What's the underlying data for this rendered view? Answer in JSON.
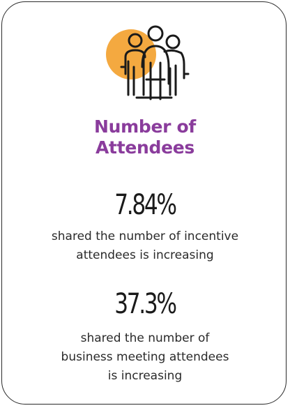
{
  "card": {
    "title_line1": "Number of",
    "title_line2": "Attendees",
    "accent_color": "#8a3c9c",
    "circle_color": "#f4a940",
    "icon": "group-of-people-icon"
  },
  "stats": [
    {
      "value": "7.84%",
      "lines": [
        "shared the number of incentive",
        "attendees is increasing"
      ]
    },
    {
      "value": "37.3%",
      "lines": [
        "shared the number of",
        "business meeting attendees",
        "is increasing"
      ]
    }
  ]
}
